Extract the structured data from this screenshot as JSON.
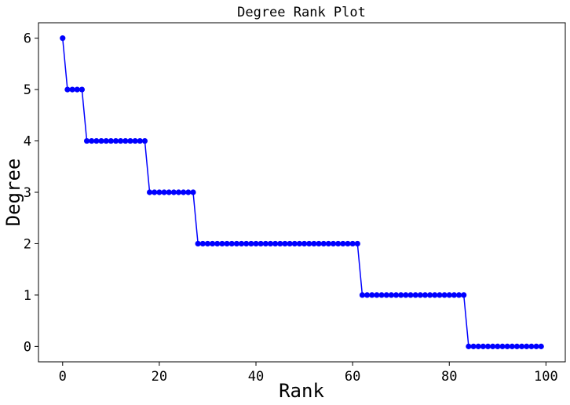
{
  "chart_data": {
    "type": "line",
    "title": "Degree Rank Plot",
    "xlabel": "Rank",
    "ylabel": "Degree",
    "xlim": [
      -5,
      104
    ],
    "ylim": [
      -0.3,
      6.3
    ],
    "xticks": [
      0,
      20,
      40,
      60,
      80,
      100
    ],
    "yticks": [
      0,
      1,
      2,
      3,
      4,
      5,
      6
    ],
    "grid": false,
    "marker": "circle",
    "color": "#0000ff",
    "series": [
      {
        "x": [
          0,
          1,
          2,
          3,
          4,
          5,
          6,
          7,
          8,
          9,
          10,
          11,
          12,
          13,
          14,
          15,
          16,
          17,
          18,
          19,
          20,
          21,
          22,
          23,
          24,
          25,
          26,
          27,
          28,
          29,
          30,
          31,
          32,
          33,
          34,
          35,
          36,
          37,
          38,
          39,
          40,
          41,
          42,
          43,
          44,
          45,
          46,
          47,
          48,
          49,
          50,
          51,
          52,
          53,
          54,
          55,
          56,
          57,
          58,
          59,
          60,
          61,
          62,
          63,
          64,
          65,
          66,
          67,
          68,
          69,
          70,
          71,
          72,
          73,
          74,
          75,
          76,
          77,
          78,
          79,
          80,
          81,
          82,
          83,
          84,
          85,
          86,
          87,
          88,
          89,
          90,
          91,
          92,
          93,
          94,
          95,
          96,
          97,
          98,
          99
        ],
        "y": [
          6,
          5,
          5,
          5,
          5,
          4,
          4,
          4,
          4,
          4,
          4,
          4,
          4,
          4,
          4,
          4,
          4,
          4,
          3,
          3,
          3,
          3,
          3,
          3,
          3,
          3,
          3,
          3,
          2,
          2,
          2,
          2,
          2,
          2,
          2,
          2,
          2,
          2,
          2,
          2,
          2,
          2,
          2,
          2,
          2,
          2,
          2,
          2,
          2,
          2,
          2,
          2,
          2,
          2,
          2,
          2,
          2,
          2,
          2,
          2,
          2,
          2,
          1,
          1,
          1,
          1,
          1,
          1,
          1,
          1,
          1,
          1,
          1,
          1,
          1,
          1,
          1,
          1,
          1,
          1,
          1,
          1,
          1,
          1,
          0,
          0,
          0,
          0,
          0,
          0,
          0,
          0,
          0,
          0,
          0,
          0,
          0,
          0,
          0,
          0
        ]
      }
    ]
  }
}
